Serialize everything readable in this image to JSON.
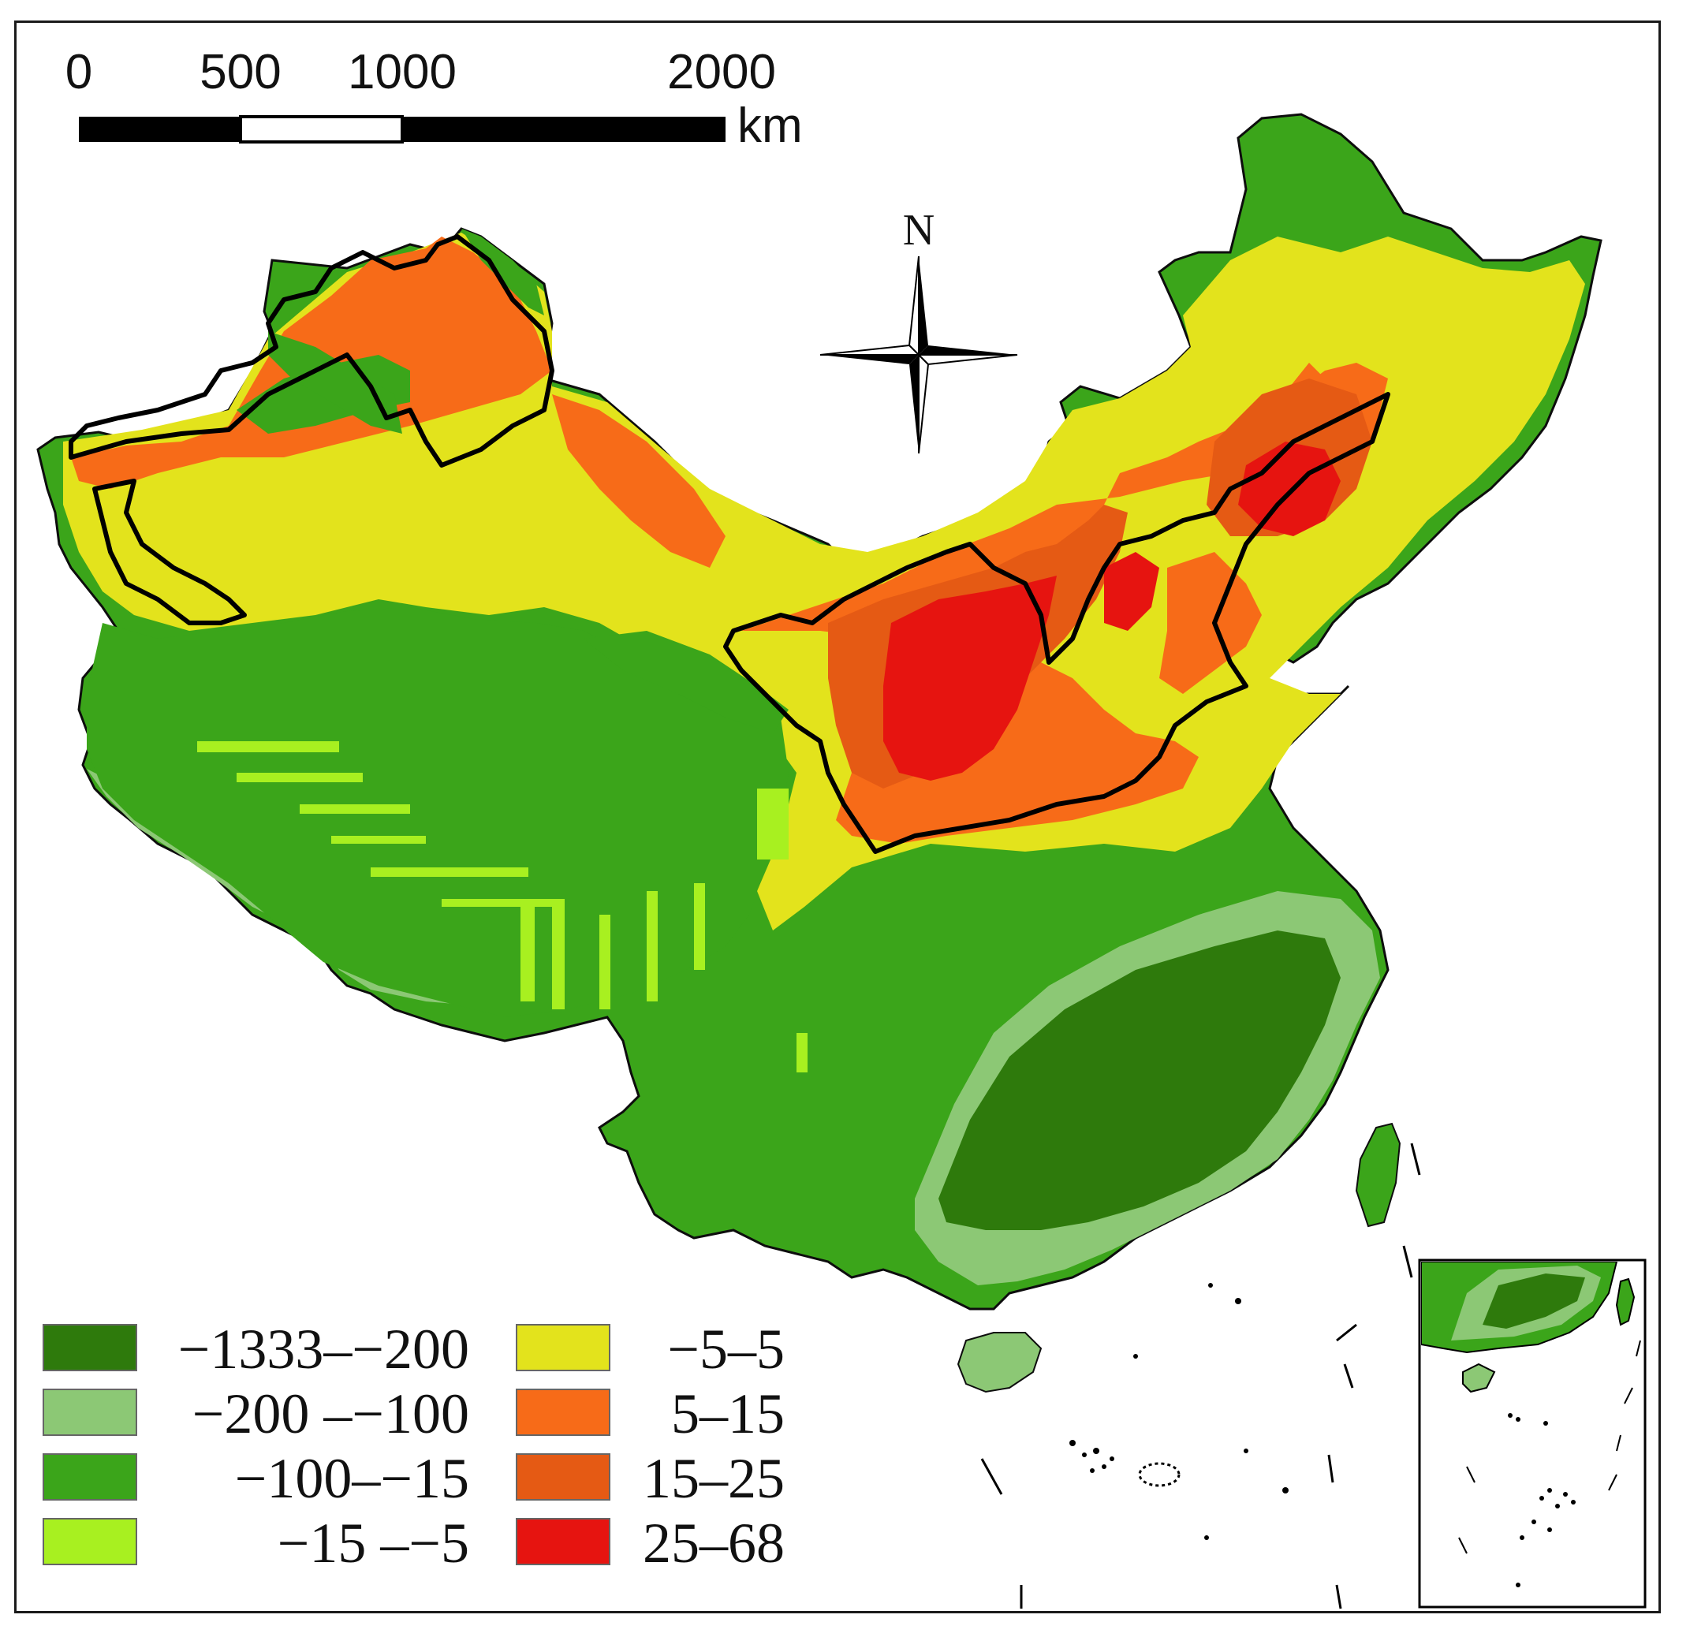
{
  "map": {
    "north_arrow": {
      "label": "N"
    },
    "scale_bar": {
      "ticks": [
        "0",
        "500",
        "1000",
        "2000"
      ],
      "unit": "km"
    },
    "legend": [
      {
        "label": "−1333–−200",
        "color": "#2e7a0c"
      },
      {
        "label": "−200 –−100",
        "color": "#8cc875"
      },
      {
        "label": "−100–−15",
        "color": "#3ba51a"
      },
      {
        "label": "−15 –−5",
        "color": "#a8f020"
      },
      {
        "label": "−5–5",
        "color": "#e3e31c"
      },
      {
        "label": "5–15",
        "color": "#f76b18"
      },
      {
        "label": "15–25",
        "color": "#e55a14"
      },
      {
        "label": "25–68",
        "color": "#e61410"
      }
    ]
  }
}
